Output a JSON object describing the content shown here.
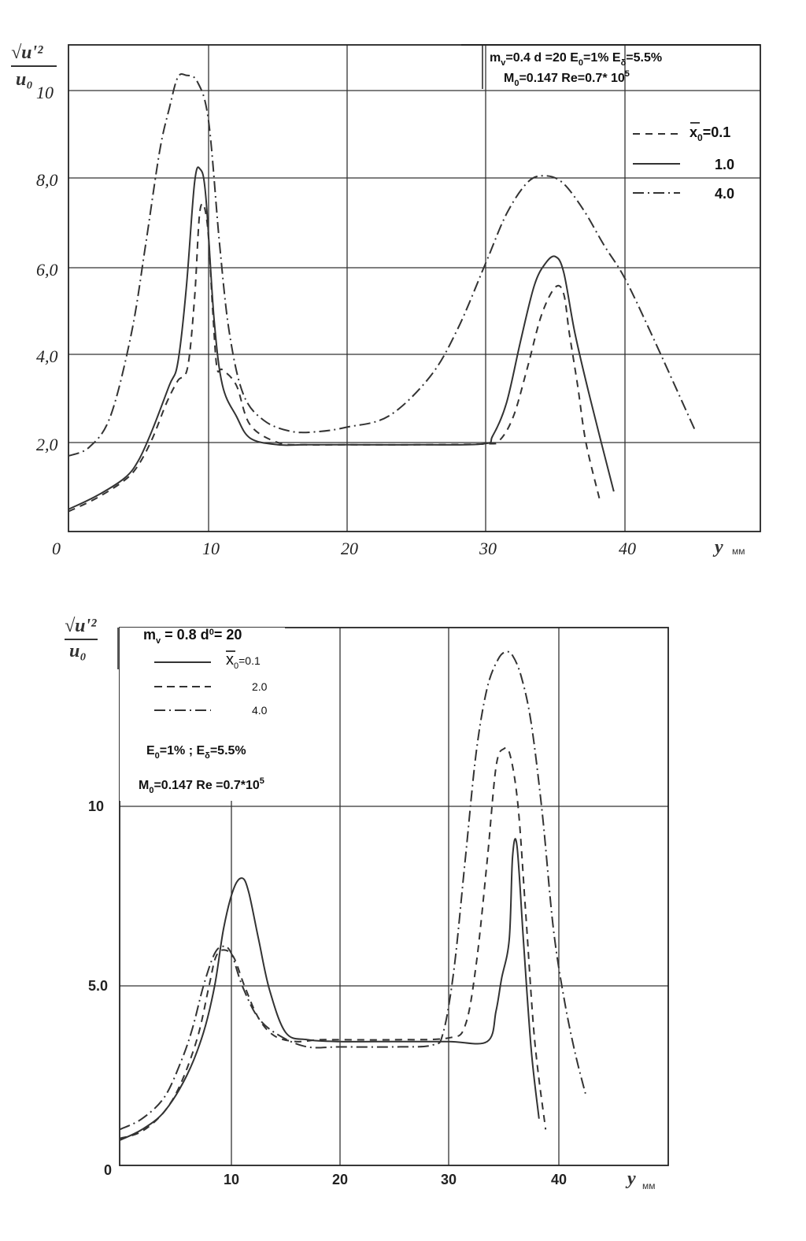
{
  "chart_data": [
    {
      "type": "line",
      "ylabel": "√u'² / u₀",
      "xlabel": "y",
      "xlabel_unit": "мм",
      "xlim": [
        0,
        50
      ],
      "ylim": [
        0,
        11
      ],
      "x_ticks": [
        0,
        10,
        20,
        30,
        40
      ],
      "x_tick_labels": [
        "0",
        "10",
        "20",
        "30",
        "40"
      ],
      "y_ticks": [
        2,
        4,
        6,
        8,
        10
      ],
      "y_tick_labels": [
        "2,0",
        "4,0",
        "6,0",
        "8,0",
        "10"
      ],
      "grid": true,
      "annotation_lines": [
        "m",
        "v",
        "=0.4   d  =20   E",
        "0",
        "=1%   E",
        "δ",
        "=5.5%",
        "M",
        "0",
        "=0.147  Re=0.7* 10",
        "5"
      ],
      "legend": {
        "placement": "top-right",
        "title_var": "x",
        "title_sub": "0",
        "title_eq": "=0.1",
        "entries": [
          {
            "label": "1.0",
            "style": "solid"
          },
          {
            "label": "4.0",
            "style": "dashdot"
          }
        ]
      },
      "series": [
        {
          "style": "dashed",
          "x": [
            0,
            2,
            4,
            5,
            6,
            7,
            7.8,
            8.5,
            9.0,
            9.4,
            9.9,
            10.3,
            10.6,
            11,
            12,
            13,
            15,
            17,
            20,
            25,
            30,
            31,
            32,
            33,
            34,
            35,
            35.6,
            36,
            36.6,
            37.2,
            38.2
          ],
          "y": [
            0.45,
            0.75,
            1.15,
            1.5,
            2.1,
            2.9,
            3.4,
            3.7,
            5.3,
            7.3,
            7.0,
            5.0,
            3.7,
            3.65,
            3.3,
            2.4,
            2.0,
            1.95,
            1.95,
            1.95,
            1.97,
            2.05,
            2.6,
            3.7,
            4.9,
            5.55,
            5.4,
            4.5,
            3.3,
            2.0,
            0.7
          ]
        },
        {
          "style": "solid",
          "x": [
            0,
            2,
            4,
            5,
            6,
            7.2,
            7.8,
            8.4,
            9.0,
            9.4,
            9.8,
            10.4,
            11,
            12,
            13,
            15,
            17,
            20,
            25,
            29.8,
            30.5,
            31.5,
            32.5,
            33.5,
            34.3,
            35,
            35.6,
            36.4,
            37.5,
            39.2
          ],
          "y": [
            0.5,
            0.8,
            1.2,
            1.6,
            2.3,
            3.3,
            3.8,
            5.5,
            7.9,
            8.2,
            7.6,
            4.8,
            3.3,
            2.6,
            2.1,
            1.95,
            1.95,
            1.95,
            1.95,
            1.97,
            2.15,
            2.9,
            4.3,
            5.6,
            6.1,
            6.25,
            5.9,
            4.5,
            3.0,
            0.9
          ]
        },
        {
          "style": "dashdot",
          "x": [
            0,
            1.5,
            3,
            4.5,
            5.5,
            6.5,
            7.2,
            7.8,
            8.4,
            9.2,
            10,
            10.8,
            11.5,
            12.5,
            14,
            16,
            18,
            20,
            23,
            26,
            28,
            30,
            31.5,
            33,
            34.2,
            35.5,
            37,
            38.5,
            40,
            42,
            45
          ],
          "y": [
            1.7,
            1.9,
            2.6,
            4.5,
            6.5,
            8.6,
            9.6,
            10.3,
            10.35,
            10.2,
            9.3,
            6.5,
            4.5,
            3.1,
            2.5,
            2.25,
            2.25,
            2.35,
            2.6,
            3.5,
            4.6,
            6.1,
            7.2,
            7.9,
            8.05,
            7.9,
            7.3,
            6.5,
            5.75,
            4.4,
            2.3
          ]
        }
      ]
    },
    {
      "type": "line",
      "ylabel": "√u'² / u₀",
      "xlabel": "y",
      "xlabel_unit": "мм",
      "xlim": [
        0,
        50
      ],
      "ylim": [
        0,
        15
      ],
      "x_ticks": [
        10,
        20,
        30,
        40
      ],
      "x_tick_labels": [
        "10",
        "20",
        "30",
        "40"
      ],
      "y_ticks": [
        0,
        5,
        10
      ],
      "y_tick_labels": [
        "0",
        "5.0",
        "10"
      ],
      "grid": true,
      "legend": {
        "placement": "top-left",
        "header": [
          "m",
          "v",
          " = 0.8  d",
          "0",
          "= 20"
        ],
        "title_var": "x",
        "title_sub": "0",
        "title_eq": "=0.1",
        "entries": [
          {
            "label": "2.0",
            "style": "dashed"
          },
          {
            "label": "4.0",
            "style": "dashdot"
          }
        ]
      },
      "annotation_lines": [
        "E",
        "0",
        "=1% ;  E",
        "δ",
        "=5.5%",
        "M",
        "0",
        "=0.147  Re  =0.7*10",
        "5"
      ],
      "series": [
        {
          "style": "solid",
          "x": [
            0,
            2,
            4,
            6,
            7.5,
            8.5,
            9.3,
            10.2,
            11,
            11.6,
            12.5,
            13.5,
            15,
            17,
            20,
            25,
            30,
            33.5,
            34.3,
            34.8,
            35.5,
            35.8,
            36.2,
            36.8,
            37.5,
            38.2
          ],
          "y": [
            0.7,
            1.0,
            1.5,
            2.5,
            3.7,
            5.0,
            6.6,
            7.7,
            8.0,
            7.6,
            6.3,
            4.9,
            3.7,
            3.5,
            3.45,
            3.45,
            3.45,
            3.45,
            4.3,
            5.2,
            6.3,
            8.6,
            8.9,
            6.2,
            3.2,
            1.3
          ]
        },
        {
          "style": "dashed",
          "x": [
            0,
            2,
            4,
            5.5,
            7,
            8,
            8.6,
            9.3,
            10.2,
            11.2,
            12.5,
            14,
            16,
            18,
            20,
            25,
            30,
            31.5,
            32.5,
            33.5,
            34.3,
            35,
            35.6,
            36.3,
            37,
            37.8,
            38.8
          ],
          "y": [
            0.75,
            0.95,
            1.5,
            2.3,
            3.6,
            5.0,
            5.8,
            6.0,
            5.8,
            5.0,
            4.1,
            3.6,
            3.45,
            3.5,
            3.5,
            3.5,
            3.55,
            3.9,
            5.6,
            8.5,
            11.1,
            11.6,
            11.4,
            10.0,
            7.0,
            3.5,
            1.0
          ]
        },
        {
          "style": "dashdot",
          "x": [
            0,
            2,
            4,
            5.5,
            6.5,
            7.5,
            8.5,
            9.3,
            10,
            11,
            12.5,
            14.5,
            17,
            20,
            25,
            28.5,
            29.5,
            30.5,
            31.5,
            32.5,
            33.5,
            34.5,
            35.2,
            35.8,
            36.6,
            37.5,
            38.5,
            39.5,
            40.5,
            41.5,
            42.5
          ],
          "y": [
            1.0,
            1.3,
            1.9,
            2.9,
            3.8,
            5.0,
            5.9,
            6.1,
            5.9,
            5.0,
            4.1,
            3.6,
            3.3,
            3.3,
            3.3,
            3.35,
            3.7,
            5.5,
            8.5,
            11.5,
            13.3,
            14.1,
            14.3,
            14.2,
            13.6,
            12.3,
            9.8,
            6.6,
            4.6,
            3.1,
            1.9
          ]
        }
      ]
    }
  ]
}
